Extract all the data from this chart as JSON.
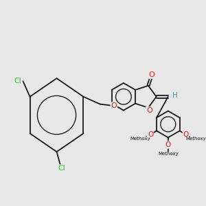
{
  "bg_color": "#e8e8e8",
  "bond_color": "#1a1a1a",
  "bond_lw": 1.3,
  "atom_colors": {
    "O": "#ee1111",
    "Cl": "#22cc22",
    "H": "#4a9999",
    "C": "#1a1a1a"
  },
  "figsize": [
    3.0,
    3.0
  ],
  "dpi": 100,
  "xlim": [
    0,
    10
  ],
  "ylim": [
    0,
    8
  ]
}
